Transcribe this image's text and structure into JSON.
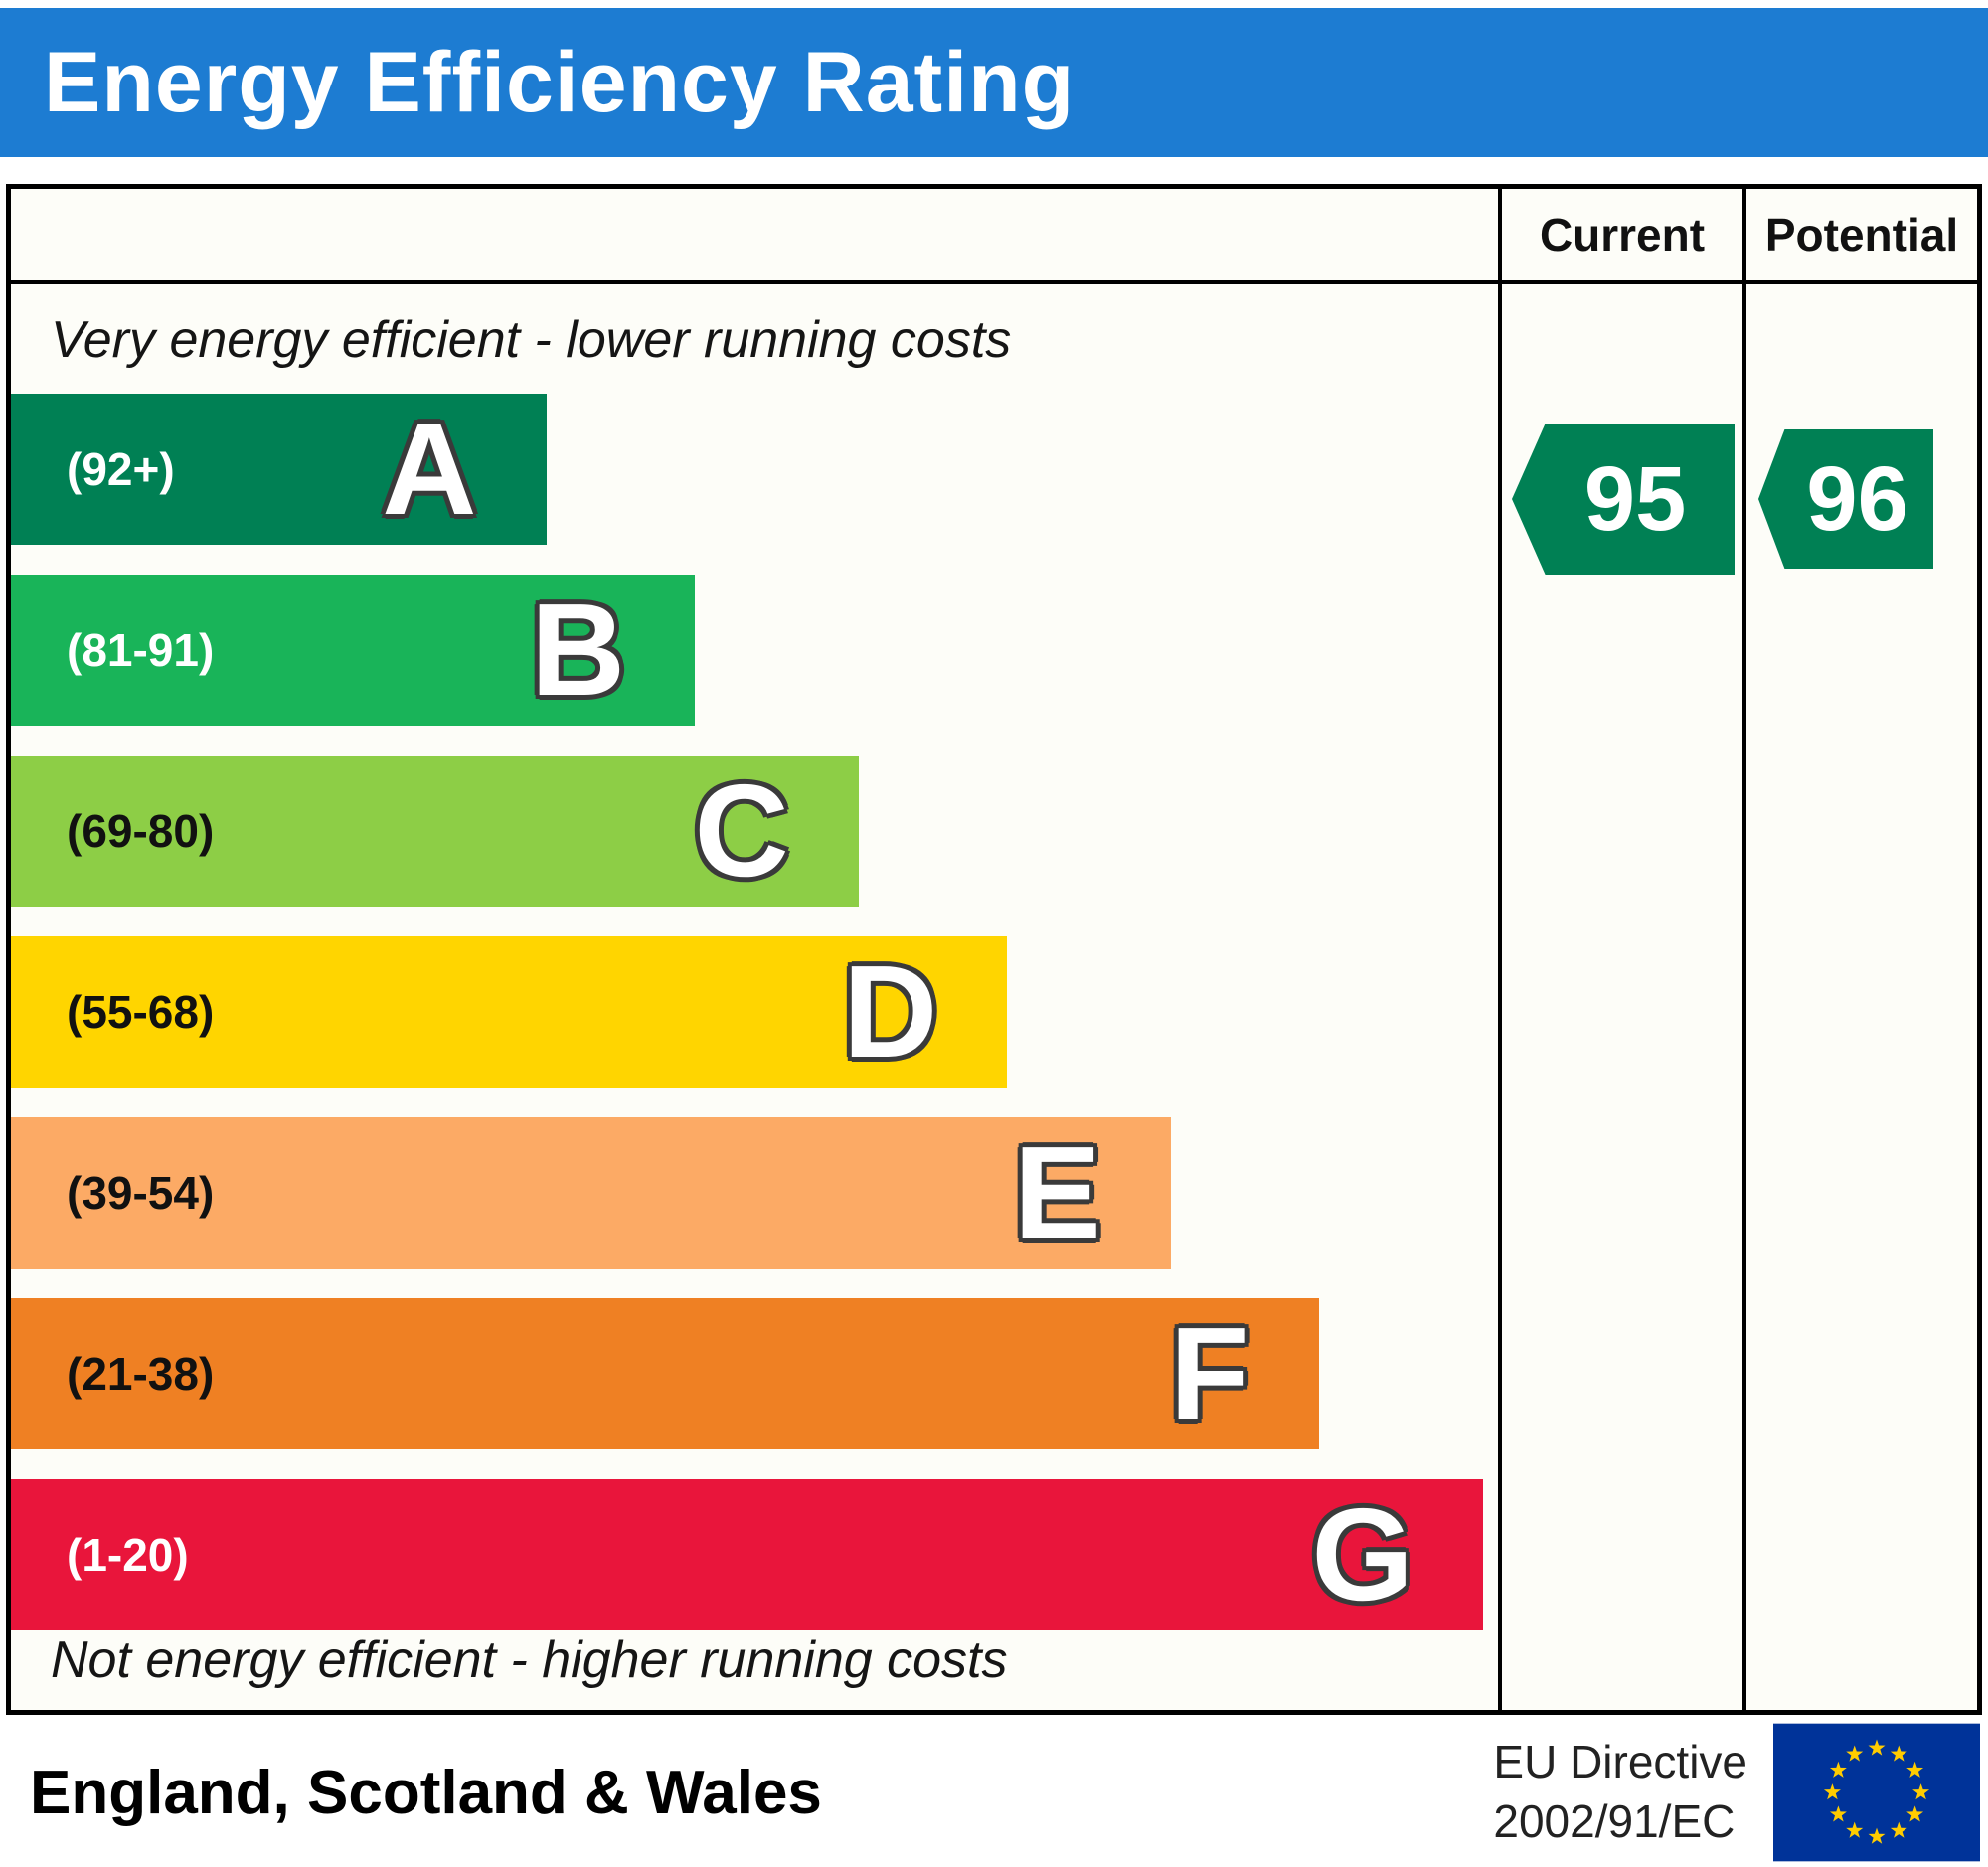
{
  "title": "Energy Efficiency Rating",
  "header": {
    "current": "Current",
    "potential": "Potential"
  },
  "notes": {
    "top": "Very energy efficient - lower running costs",
    "bottom": "Not energy efficient - higher running costs"
  },
  "bands": [
    {
      "letter": "A",
      "range": "(92+)",
      "color": "#008054",
      "range_color": "#ffffff",
      "width_pct": 36
    },
    {
      "letter": "B",
      "range": "(81-91)",
      "color": "#19b459",
      "range_color": "#ffffff",
      "width_pct": 46
    },
    {
      "letter": "C",
      "range": "(69-80)",
      "color": "#8dce46",
      "range_color": "#111111",
      "width_pct": 57
    },
    {
      "letter": "D",
      "range": "(55-68)",
      "color": "#ffd500",
      "range_color": "#111111",
      "width_pct": 67
    },
    {
      "letter": "E",
      "range": "(39-54)",
      "color": "#fcaa65",
      "range_color": "#111111",
      "width_pct": 78
    },
    {
      "letter": "F",
      "range": "(21-38)",
      "color": "#ef8023",
      "range_color": "#111111",
      "width_pct": 88
    },
    {
      "letter": "G",
      "range": "(1-20)",
      "color": "#e9153b",
      "range_color": "#ffffff",
      "width_pct": 99
    }
  ],
  "current": {
    "value": "95",
    "color": "#008054"
  },
  "potential": {
    "value": "96",
    "color": "#008054"
  },
  "footer": {
    "region": "England, Scotland & Wales",
    "directive_line1": "EU Directive",
    "directive_line2": "2002/91/EC"
  },
  "flag_colors": {
    "field": "#003399",
    "stars": "#ffcc00"
  },
  "chart_data": {
    "type": "bar",
    "title": "Energy Efficiency Rating",
    "categories": [
      "A",
      "B",
      "C",
      "D",
      "E",
      "F",
      "G"
    ],
    "ranges": [
      "92+",
      "81-91",
      "69-80",
      "55-68",
      "39-54",
      "21-38",
      "1-20"
    ],
    "colors": [
      "#008054",
      "#19b459",
      "#8dce46",
      "#ffd500",
      "#fcaa65",
      "#ef8023",
      "#e9153b"
    ],
    "bar_relative_widths_pct": [
      36,
      46,
      57,
      67,
      78,
      88,
      99
    ],
    "current": 95,
    "potential": 96,
    "current_band": "A",
    "potential_band": "A",
    "annotations": [
      "Very energy efficient - lower running costs",
      "Not energy efficient - higher running costs"
    ],
    "region": "England, Scotland & Wales",
    "directive": "EU Directive 2002/91/EC",
    "legend_position": "top-right-columns",
    "grid": false
  }
}
